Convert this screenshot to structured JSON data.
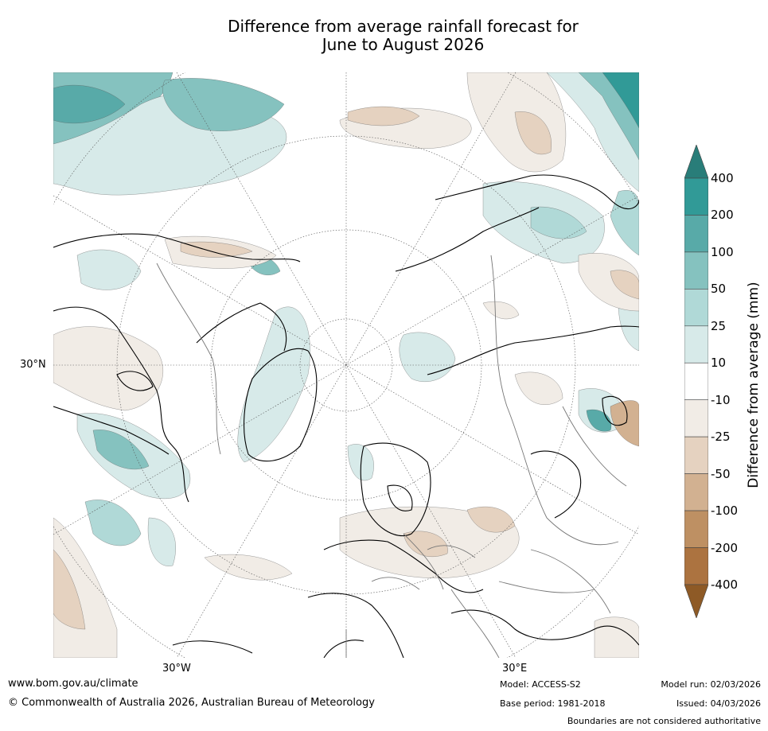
{
  "title_line1": "Difference from average rainfall forecast for",
  "title_line2": "June to August 2026",
  "map": {
    "projection": "north-polar-stereographic",
    "lat_labels": [
      {
        "text": "30°N"
      }
    ],
    "lon_labels": [
      {
        "text": "30°W"
      },
      {
        "text": "30°E"
      }
    ]
  },
  "colorbar": {
    "label": "Difference from average (mm)",
    "ticks": [
      "400",
      "200",
      "100",
      "50",
      "25",
      "10",
      "-10",
      "-25",
      "-50",
      "-100",
      "-200",
      "-400"
    ],
    "over_color": "#297d79",
    "under_color": "#8e5a26",
    "colors": [
      "#319a97",
      "#58aaa8",
      "#85c2bf",
      "#b0d9d7",
      "#d7eae9",
      "#ffffff",
      "#f1ece6",
      "#e5d2c0",
      "#d2b191",
      "#be9063",
      "#ac7340"
    ]
  },
  "footer": {
    "website": "www.bom.gov.au/climate",
    "copyright": "© Commonwealth of Australia 2026, Australian Bureau of Meteorology",
    "model": "Model: ACCESS-S2",
    "base_period": "Base period: 1981-2018",
    "model_run": "Model run: 02/03/2026",
    "issued": "Issued: 04/03/2026",
    "boundaries": "Boundaries are not considered authoritative"
  }
}
